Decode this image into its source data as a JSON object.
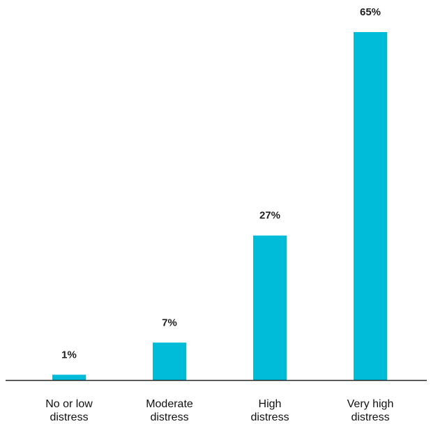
{
  "chart_data": {
    "type": "bar",
    "categories": [
      [
        "No or low",
        "distress"
      ],
      [
        "Moderate",
        "distress"
      ],
      [
        "High",
        "distress"
      ],
      [
        "Very high",
        "distress"
      ]
    ],
    "values": [
      1,
      7,
      27,
      65
    ],
    "value_labels": [
      "1%",
      "7%",
      "27%",
      "65%"
    ],
    "ylim": [
      0,
      65
    ],
    "grid": false,
    "legend": "none",
    "bar_color": "#00BCD8",
    "axis_color": "#222222"
  }
}
